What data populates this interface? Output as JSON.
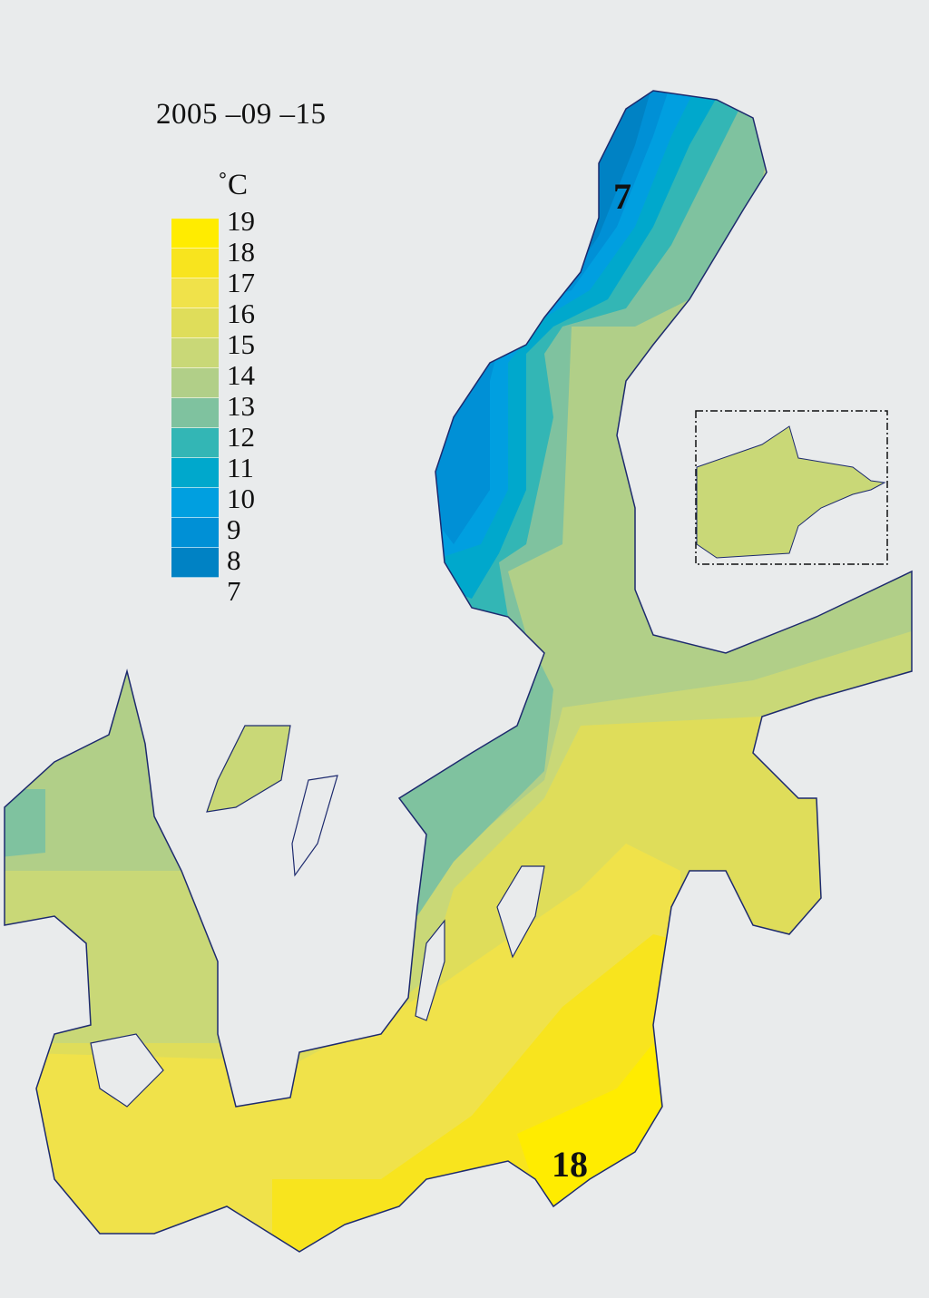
{
  "title": "2005 –09 –15",
  "unit": "˚C",
  "legend": {
    "labels": [
      "19",
      "18",
      "17",
      "16",
      "15",
      "14",
      "13",
      "12",
      "11",
      "10",
      "9",
      "8",
      "7"
    ],
    "colors": [
      "#ffec00",
      "#f8e41e",
      "#f0e24a",
      "#dfdd5a",
      "#c9d877",
      "#b1cf88",
      "#7fc29f",
      "#33b6b5",
      "#00a8cc",
      "#009fe0",
      "#0090d6",
      "#0082c4"
    ]
  },
  "map_labels": {
    "min": "7",
    "max": "18"
  },
  "colors": {
    "background": "#e9ebec",
    "coast": "#1d2a6e"
  }
}
